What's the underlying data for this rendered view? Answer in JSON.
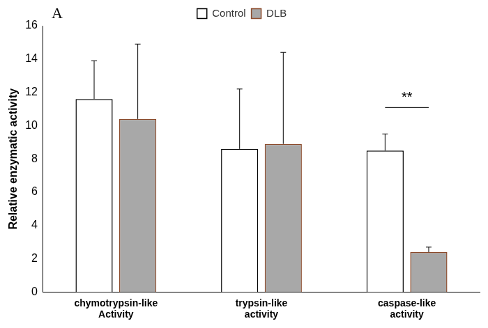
{
  "chart_data": {
    "type": "bar",
    "title": "A",
    "y_label": "Relative enzymatic activity",
    "categories": [
      "chymotrypsin-like Activity",
      "trypsin-like activity",
      "caspase-like activity"
    ],
    "series": [
      {
        "name": "Control",
        "color": "#ffffff",
        "values": [
          11.6,
          8.6,
          8.5
        ],
        "errors": [
          2.3,
          3.6,
          1.0
        ]
      },
      {
        "name": "DLB",
        "color": "#a8a8a8",
        "values": [
          10.4,
          8.9,
          2.4
        ],
        "errors": [
          4.5,
          5.5,
          0.3
        ]
      }
    ],
    "annotations": [
      {
        "text": "**",
        "category": "caspase-like activity"
      }
    ],
    "ylim": [
      0,
      16
    ],
    "yticks": [
      0,
      2,
      4,
      6,
      8,
      10,
      12,
      14,
      16
    ],
    "grid": false,
    "legend": "top"
  }
}
